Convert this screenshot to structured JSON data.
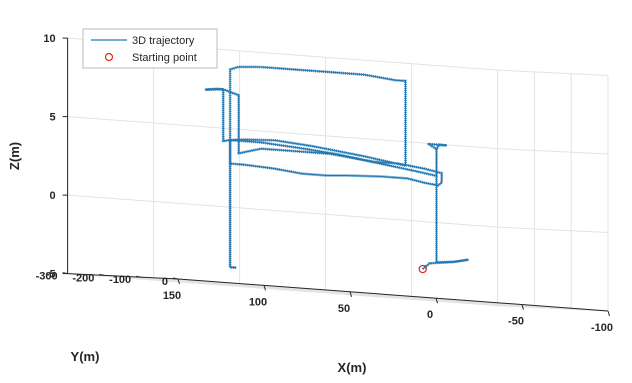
{
  "chart_data": {
    "type": "line",
    "title": "",
    "xlabel": "X(m)",
    "ylabel": "Y(m)",
    "zlabel": "Z(m)",
    "xlim": [
      150,
      -100
    ],
    "ylim": [
      0,
      -300
    ],
    "zlim": [
      -5,
      10
    ],
    "x_ticks": [
      "150",
      "100",
      "50",
      "0",
      "-50",
      "-100"
    ],
    "y_ticks": [
      "0",
      "-100",
      "-200",
      "-300"
    ],
    "z_ticks": [
      "-5",
      "0",
      "5",
      "10"
    ],
    "grid": true,
    "legend": {
      "placement": "top-left",
      "entries": [
        "3D trajectory",
        "Starting point"
      ]
    },
    "colors": {
      "trajectory": "#1f77b4",
      "start_marker": "#e0281c"
    },
    "series": [
      {
        "name": "3D trajectory",
        "style": "line",
        "points": [
          [
            6,
            -8,
            -3.2
          ],
          [
            2,
            -8,
            -2.8
          ],
          [
            -12,
            -8,
            -2.6
          ],
          [
            -20,
            -8,
            -2.4
          ],
          [
            -12,
            -8,
            -2.6
          ],
          [
            -2,
            -8,
            -2.7
          ],
          [
            -2,
            -8,
            -1.5
          ],
          [
            -2,
            -8,
            2.8
          ],
          [
            -2,
            -8,
            4.2
          ],
          [
            -2,
            -8,
            4.5
          ],
          [
            -6,
            -20,
            4.8
          ],
          [
            -10,
            -20,
            4.8
          ],
          [
            0,
            -20,
            4.8
          ],
          [
            -2,
            -8,
            4.5
          ],
          [
            -2,
            -8,
            3.0
          ],
          [
            -2,
            -8,
            2.8
          ],
          [
            10,
            -8,
            3.0
          ],
          [
            30,
            -8,
            3.3
          ],
          [
            55,
            -8,
            3.7
          ],
          [
            75,
            -8,
            3.9
          ],
          [
            100,
            -8,
            4.1
          ],
          [
            118,
            -8,
            4.1
          ],
          [
            118,
            -8,
            2.0
          ],
          [
            118,
            -8,
            -1.0
          ],
          [
            118,
            -8,
            -4.0
          ],
          [
            115,
            -8,
            -4.0
          ],
          [
            118,
            -8,
            -4.0
          ],
          [
            118,
            -8,
            0.0
          ],
          [
            118,
            -8,
            4.1
          ],
          [
            122,
            -8,
            4.0
          ],
          [
            122,
            -8,
            6.5
          ],
          [
            122,
            -8,
            7.3
          ],
          [
            126,
            -8,
            7.3
          ],
          [
            132,
            -8,
            7.2
          ],
          [
            122,
            -8,
            7.3
          ],
          [
            113,
            -8,
            7.0
          ],
          [
            113,
            -8,
            3.5
          ],
          [
            113,
            -8,
            3.3
          ],
          [
            100,
            -8,
            3.7
          ],
          [
            80,
            -8,
            3.7
          ],
          [
            60,
            -8,
            3.7
          ],
          [
            35,
            -8,
            3.4
          ],
          [
            20,
            -8,
            3.4
          ],
          [
            5,
            -8,
            3.2
          ],
          [
            -5,
            -8,
            3.0
          ],
          [
            -5,
            -8,
            2.4
          ],
          [
            -3,
            -8,
            2.2
          ],
          [
            5,
            -8,
            2.3
          ],
          [
            15,
            -8,
            2.5
          ],
          [
            30,
            -8,
            2.5
          ],
          [
            50,
            -8,
            2.4
          ],
          [
            62,
            -8,
            2.3
          ],
          [
            76,
            -8,
            2.3
          ],
          [
            93,
            -8,
            2.5
          ],
          [
            110,
            -8,
            2.6
          ],
          [
            118,
            -8,
            2.6
          ],
          [
            118,
            -8,
            5.0
          ],
          [
            118,
            -8,
            8.0
          ],
          [
            118,
            -8,
            8.6
          ],
          [
            113,
            -8,
            8.8
          ],
          [
            100,
            -8,
            8.9
          ],
          [
            80,
            -8,
            8.9
          ],
          [
            60,
            -8,
            8.9
          ],
          [
            40,
            -8,
            8.9
          ],
          [
            22,
            -8,
            8.7
          ],
          [
            16,
            -8,
            8.7
          ],
          [
            16,
            -8,
            6.0
          ],
          [
            16,
            -8,
            3.7
          ],
          [
            16,
            -8,
            3.3
          ],
          [
            40,
            -8,
            3.7
          ],
          [
            70,
            -8,
            4.1
          ],
          [
            92,
            -8,
            4.3
          ],
          [
            110,
            -8,
            4.2
          ],
          [
            118,
            -8,
            4.1
          ]
        ]
      },
      {
        "name": "Starting point",
        "style": "marker",
        "points": [
          [
            6,
            -8,
            -3.2
          ]
        ]
      }
    ]
  }
}
